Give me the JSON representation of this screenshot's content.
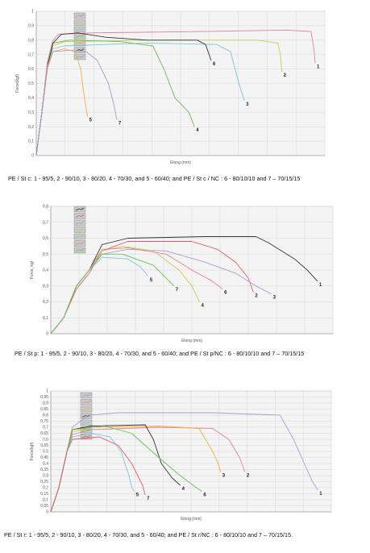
{
  "chart_data": [
    {
      "type": "line",
      "xlabel": "Elong (mm)",
      "ylabel": "Force(kgf)",
      "ylim": [
        0,
        1
      ],
      "yticks": [
        "0",
        "0,1",
        "0,2",
        "0,3",
        "0,4",
        "0,5",
        "0,6",
        "0,7",
        "0,8",
        "0,9",
        "1"
      ],
      "caption": "PE  / St c: 1 - 95/5, 2 - 90/10, 3 - 80/20, 4 - 70/30, and 5 - 60/40; and  PE  / St c / NC : 6 - 80/10/10 and 7  – 70/15/15",
      "series": [
        {
          "label": "1",
          "color": "#e0829a",
          "points": [
            [
              0,
              0
            ],
            [
              2,
              0.3
            ],
            [
              4,
              0.65
            ],
            [
              6,
              0.8
            ],
            [
              8,
              0.84
            ],
            [
              20,
              0.85
            ],
            [
              60,
              0.86
            ],
            [
              90,
              0.87
            ],
            [
              99,
              0.86
            ],
            [
              100,
              0.75
            ],
            [
              100.5,
              0.64
            ]
          ]
        },
        {
          "label": "2",
          "color": "#c8cc4a",
          "points": [
            [
              0,
              0
            ],
            [
              2,
              0.3
            ],
            [
              4,
              0.62
            ],
            [
              6,
              0.76
            ],
            [
              10,
              0.79
            ],
            [
              40,
              0.8
            ],
            [
              80,
              0.8
            ],
            [
              87,
              0.78
            ],
            [
              88,
              0.7
            ],
            [
              88.5,
              0.58
            ]
          ]
        },
        {
          "label": "3",
          "color": "#7ac6d6",
          "points": [
            [
              0,
              0
            ],
            [
              2,
              0.3
            ],
            [
              4,
              0.6
            ],
            [
              6,
              0.74
            ],
            [
              10,
              0.76
            ],
            [
              40,
              0.78
            ],
            [
              65,
              0.77
            ],
            [
              70,
              0.72
            ],
            [
              73,
              0.5
            ],
            [
              75,
              0.38
            ]
          ]
        },
        {
          "label": "4",
          "color": "#66c253",
          "points": [
            [
              0,
              0
            ],
            [
              2,
              0.3
            ],
            [
              4,
              0.62
            ],
            [
              6,
              0.78
            ],
            [
              12,
              0.8
            ],
            [
              30,
              0.79
            ],
            [
              42,
              0.76
            ],
            [
              46,
              0.6
            ],
            [
              50,
              0.4
            ],
            [
              55,
              0.3
            ],
            [
              57,
              0.2
            ]
          ]
        },
        {
          "label": "5",
          "color": "#f0b040",
          "points": [
            [
              0,
              0
            ],
            [
              2,
              0.3
            ],
            [
              4,
              0.6
            ],
            [
              6,
              0.72
            ],
            [
              10,
              0.74
            ],
            [
              14,
              0.72
            ],
            [
              16,
              0.6
            ],
            [
              17,
              0.45
            ],
            [
              18,
              0.32
            ],
            [
              18.5,
              0.27
            ]
          ]
        },
        {
          "label": "6",
          "color": "#333333",
          "points": [
            [
              0,
              0
            ],
            [
              2,
              0.3
            ],
            [
              4,
              0.62
            ],
            [
              6,
              0.78
            ],
            [
              9,
              0.84
            ],
            [
              15,
              0.85
            ],
            [
              25,
              0.82
            ],
            [
              40,
              0.8
            ],
            [
              58,
              0.8
            ],
            [
              61,
              0.77
            ],
            [
              63,
              0.66
            ]
          ]
        },
        {
          "label": "7",
          "color": "#b09ad0",
          "points": [
            [
              0,
              0
            ],
            [
              2,
              0.3
            ],
            [
              4,
              0.62
            ],
            [
              6,
              0.72
            ],
            [
              12,
              0.73
            ],
            [
              18,
              0.72
            ],
            [
              22,
              0.66
            ],
            [
              26,
              0.5
            ],
            [
              28,
              0.35
            ],
            [
              29,
              0.25
            ]
          ]
        }
      ]
    },
    {
      "type": "line",
      "xlabel": "Elong (mm)",
      "ylabel": "Force, kgf",
      "ylim": [
        0,
        0.8
      ],
      "yticks": [
        "0",
        "0,1",
        "0,2",
        "0,3",
        "0,4",
        "0,5",
        "0,6",
        "0,7",
        "0,8"
      ],
      "caption": "PE  / St p: 1 - 95/5, 2 - 90/10, 3 - 80/20, 4 - 70/30, and 5 - 60/40; and  PE  / St p/NC : 6 - 80/10/10 and 7  – 70/15/15",
      "series": [
        {
          "label": "1",
          "color": "#333333",
          "points": [
            [
              0,
              0
            ],
            [
              5,
              0.1
            ],
            [
              10,
              0.3
            ],
            [
              15,
              0.4
            ],
            [
              20,
              0.56
            ],
            [
              30,
              0.6
            ],
            [
              60,
              0.61
            ],
            [
              80,
              0.61
            ],
            [
              85,
              0.57
            ],
            [
              95,
              0.47
            ],
            [
              100,
              0.4
            ],
            [
              104,
              0.33
            ]
          ]
        },
        {
          "label": "2",
          "color": "#e05a6a",
          "points": [
            [
              0,
              0
            ],
            [
              5,
              0.1
            ],
            [
              10,
              0.28
            ],
            [
              15,
              0.38
            ],
            [
              20,
              0.52
            ],
            [
              30,
              0.58
            ],
            [
              55,
              0.58
            ],
            [
              65,
              0.53
            ],
            [
              72,
              0.45
            ],
            [
              77,
              0.35
            ],
            [
              79,
              0.26
            ]
          ]
        },
        {
          "label": "3",
          "color": "#b09ad0",
          "points": [
            [
              0,
              0
            ],
            [
              5,
              0.1
            ],
            [
              10,
              0.3
            ],
            [
              15,
              0.4
            ],
            [
              20,
              0.5
            ],
            [
              30,
              0.53
            ],
            [
              45,
              0.52
            ],
            [
              60,
              0.45
            ],
            [
              72,
              0.38
            ],
            [
              80,
              0.3
            ],
            [
              86,
              0.25
            ]
          ]
        },
        {
          "label": "4",
          "color": "#c8cc4a",
          "points": [
            [
              0,
              0
            ],
            [
              5,
              0.1
            ],
            [
              10,
              0.3
            ],
            [
              15,
              0.4
            ],
            [
              20,
              0.52
            ],
            [
              28,
              0.55
            ],
            [
              40,
              0.52
            ],
            [
              50,
              0.4
            ],
            [
              55,
              0.3
            ],
            [
              58,
              0.2
            ]
          ]
        },
        {
          "label": "5",
          "color": "#7ac6d6",
          "points": [
            [
              0,
              0
            ],
            [
              5,
              0.1
            ],
            [
              10,
              0.3
            ],
            [
              15,
              0.4
            ],
            [
              20,
              0.48
            ],
            [
              30,
              0.47
            ],
            [
              35,
              0.42
            ],
            [
              38,
              0.36
            ]
          ]
        },
        {
          "label": "6",
          "color": "#e0829a",
          "points": [
            [
              0,
              0
            ],
            [
              5,
              0.1
            ],
            [
              10,
              0.3
            ],
            [
              15,
              0.4
            ],
            [
              20,
              0.53
            ],
            [
              30,
              0.54
            ],
            [
              45,
              0.5
            ],
            [
              55,
              0.4
            ],
            [
              63,
              0.33
            ],
            [
              67,
              0.28
            ]
          ]
        },
        {
          "label": "7",
          "color": "#66c253",
          "points": [
            [
              0,
              0
            ],
            [
              5,
              0.1
            ],
            [
              10,
              0.3
            ],
            [
              15,
              0.4
            ],
            [
              20,
              0.5
            ],
            [
              28,
              0.5
            ],
            [
              40,
              0.43
            ],
            [
              45,
              0.35
            ],
            [
              48,
              0.3
            ]
          ]
        }
      ]
    },
    {
      "type": "line",
      "xlabel": "Elong (mm)",
      "ylabel": "Force(kgf)",
      "ylim": [
        0,
        1
      ],
      "yticks": [
        "0",
        "0,05",
        "0,1",
        "0,15",
        "0,2",
        "0,25",
        "0,3",
        "0,35",
        "0,4",
        "0,45",
        "0,5",
        "0,55",
        "0,6",
        "0,65",
        "0,7",
        "0,75",
        "0,8",
        "0,85",
        "0,9",
        "0,95",
        "1"
      ],
      "caption": "PE / St r: 1 - 95/5, 2 - 90/10, 3 - 80/20, 4 - 70/30, and 5 - 60/40; and  PE / St r/NC : 6 - 80/10/10 and 7  – 70/15/15.",
      "series": [
        {
          "label": "1",
          "color": "#b09ad0",
          "points": [
            [
              0,
              0
            ],
            [
              3,
              0.2
            ],
            [
              6,
              0.5
            ],
            [
              8,
              0.7
            ],
            [
              14,
              0.8
            ],
            [
              25,
              0.82
            ],
            [
              60,
              0.82
            ],
            [
              85,
              0.8
            ],
            [
              90,
              0.6
            ],
            [
              94,
              0.4
            ],
            [
              97,
              0.25
            ],
            [
              99,
              0.18
            ]
          ]
        },
        {
          "label": "2",
          "color": "#e0829a",
          "points": [
            [
              0,
              0
            ],
            [
              3,
              0.2
            ],
            [
              6,
              0.5
            ],
            [
              8,
              0.64
            ],
            [
              15,
              0.68
            ],
            [
              40,
              0.7
            ],
            [
              60,
              0.69
            ],
            [
              66,
              0.6
            ],
            [
              70,
              0.45
            ],
            [
              72,
              0.33
            ]
          ]
        },
        {
          "label": "3",
          "color": "#f0b040",
          "points": [
            [
              0,
              0
            ],
            [
              3,
              0.2
            ],
            [
              6,
              0.5
            ],
            [
              8,
              0.66
            ],
            [
              15,
              0.7
            ],
            [
              40,
              0.71
            ],
            [
              55,
              0.69
            ],
            [
              60,
              0.5
            ],
            [
              62,
              0.4
            ],
            [
              63,
              0.33
            ]
          ]
        },
        {
          "label": "4",
          "color": "#333333",
          "points": [
            [
              0,
              0
            ],
            [
              3,
              0.2
            ],
            [
              6,
              0.5
            ],
            [
              8,
              0.68
            ],
            [
              15,
              0.71
            ],
            [
              35,
              0.72
            ],
            [
              38,
              0.6
            ],
            [
              41,
              0.4
            ],
            [
              45,
              0.28
            ],
            [
              48,
              0.22
            ]
          ]
        },
        {
          "label": "5",
          "color": "#7ac6d6",
          "points": [
            [
              0,
              0
            ],
            [
              3,
              0.2
            ],
            [
              6,
              0.5
            ],
            [
              8,
              0.62
            ],
            [
              15,
              0.65
            ],
            [
              22,
              0.62
            ],
            [
              26,
              0.5
            ],
            [
              29,
              0.3
            ],
            [
              30,
              0.2
            ],
            [
              31,
              0.17
            ]
          ]
        },
        {
          "label": "6",
          "color": "#66c253",
          "points": [
            [
              0,
              0
            ],
            [
              3,
              0.2
            ],
            [
              6,
              0.5
            ],
            [
              8,
              0.68
            ],
            [
              20,
              0.71
            ],
            [
              30,
              0.65
            ],
            [
              40,
              0.45
            ],
            [
              48,
              0.3
            ],
            [
              54,
              0.2
            ],
            [
              56,
              0.17
            ]
          ]
        },
        {
          "label": "7",
          "color": "#e05a6a",
          "points": [
            [
              0,
              0
            ],
            [
              3,
              0.2
            ],
            [
              6,
              0.5
            ],
            [
              8,
              0.6
            ],
            [
              18,
              0.62
            ],
            [
              25,
              0.55
            ],
            [
              30,
              0.4
            ],
            [
              34,
              0.22
            ],
            [
              35,
              0.14
            ]
          ]
        }
      ]
    }
  ]
}
